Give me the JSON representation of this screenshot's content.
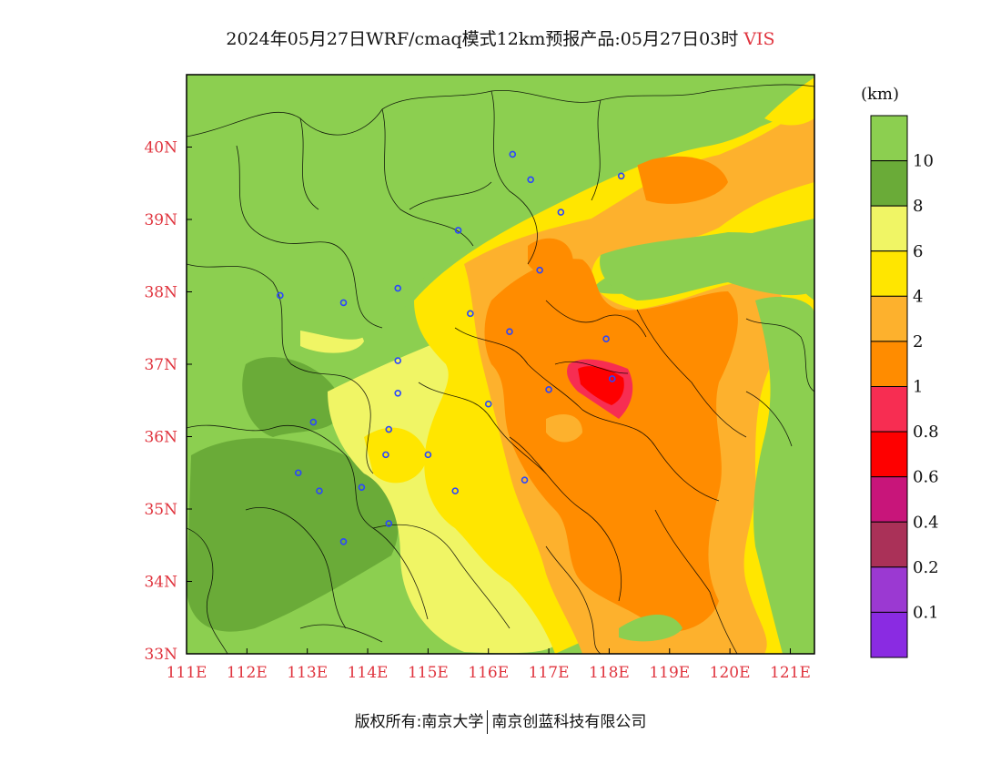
{
  "title": {
    "main": "2024年05月27日WRF/cmaq模式12km预报产品:05月27日03时",
    "variable": "VIS"
  },
  "legend": {
    "unit": "(km)",
    "labels": [
      "10",
      "8",
      "6",
      "4",
      "2",
      "1",
      "0.8",
      "0.6",
      "0.4",
      "0.2",
      "0.1"
    ],
    "colors": [
      "#8ccf50",
      "#6aab38",
      "#f0f565",
      "#ffe600",
      "#fdb12d",
      "#ff8c00",
      "#f72d52",
      "#fe0000",
      "#c8157a",
      "#aa3158",
      "#9b39d2",
      "#8a2be2"
    ]
  },
  "axes": {
    "x_labels": [
      "111E",
      "112E",
      "113E",
      "114E",
      "115E",
      "116E",
      "117E",
      "118E",
      "119E",
      "120E",
      "121E"
    ],
    "y_labels": [
      "40N",
      "39N",
      "38N",
      "37N",
      "36N",
      "35N",
      "34N",
      "33N"
    ],
    "lon_range": [
      111,
      121.4
    ],
    "lat_range": [
      33,
      41
    ]
  },
  "stations": [
    {
      "lon": 116.4,
      "lat": 39.9
    },
    {
      "lon": 116.7,
      "lat": 39.55
    },
    {
      "lon": 117.2,
      "lat": 39.1
    },
    {
      "lon": 118.2,
      "lat": 39.6
    },
    {
      "lon": 115.5,
      "lat": 38.85
    },
    {
      "lon": 116.85,
      "lat": 38.3
    },
    {
      "lon": 112.55,
      "lat": 37.95
    },
    {
      "lon": 113.6,
      "lat": 37.85
    },
    {
      "lon": 114.5,
      "lat": 38.05
    },
    {
      "lon": 115.7,
      "lat": 37.7
    },
    {
      "lon": 116.35,
      "lat": 37.45
    },
    {
      "lon": 117.0,
      "lat": 36.65
    },
    {
      "lon": 118.05,
      "lat": 36.8
    },
    {
      "lon": 117.95,
      "lat": 37.35
    },
    {
      "lon": 114.5,
      "lat": 37.05
    },
    {
      "lon": 114.5,
      "lat": 36.6
    },
    {
      "lon": 116.0,
      "lat": 36.45
    },
    {
      "lon": 113.1,
      "lat": 36.2
    },
    {
      "lon": 114.35,
      "lat": 36.1
    },
    {
      "lon": 114.3,
      "lat": 35.75
    },
    {
      "lon": 115.0,
      "lat": 35.75
    },
    {
      "lon": 112.85,
      "lat": 35.5
    },
    {
      "lon": 113.2,
      "lat": 35.25
    },
    {
      "lon": 113.9,
      "lat": 35.3
    },
    {
      "lon": 115.45,
      "lat": 35.25
    },
    {
      "lon": 116.6,
      "lat": 35.4
    },
    {
      "lon": 114.35,
      "lat": 34.8
    },
    {
      "lon": 113.6,
      "lat": 34.55
    }
  ],
  "footer": {
    "left": "版权所有:南京大学",
    "right": "南京创蓝科技有限公司"
  }
}
